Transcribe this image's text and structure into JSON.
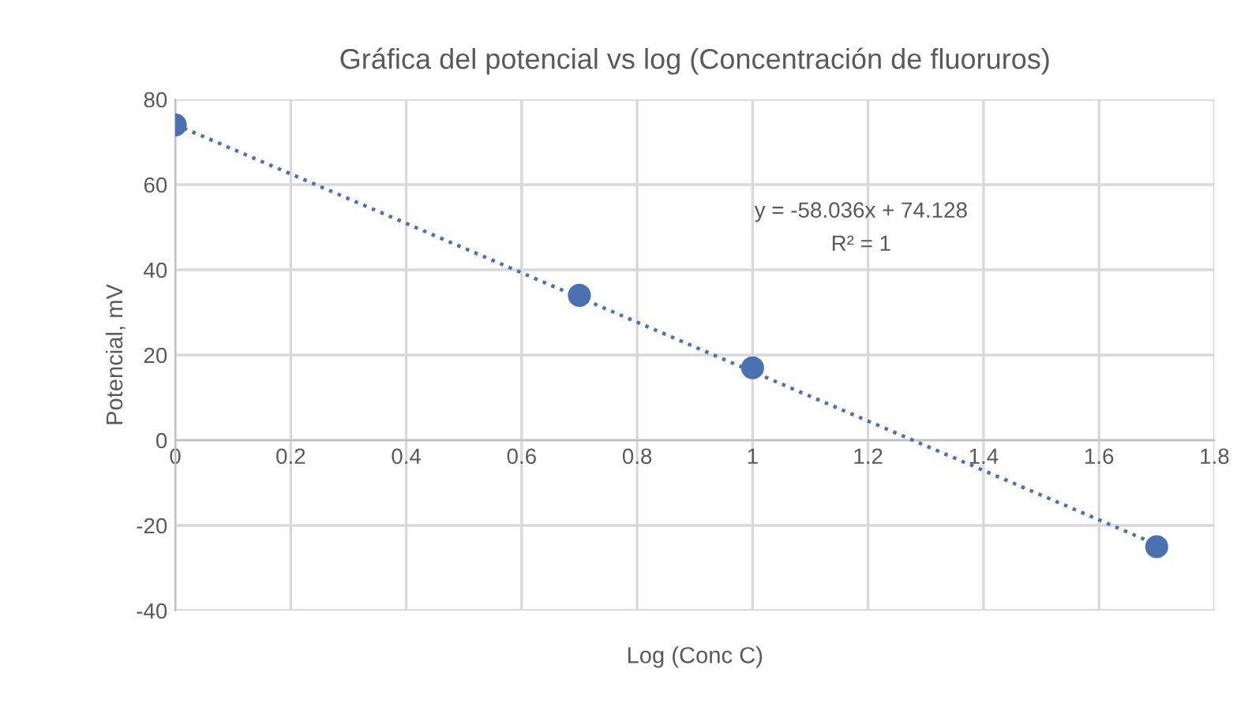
{
  "chart_data": {
    "type": "scatter",
    "title": "Gráfica del potencial vs log (Concentración de fluoruros)",
    "xlabel": "Log (Conc C)",
    "ylabel": "Potencial, mV",
    "series": [
      {
        "color": "#4a72b0",
        "x": [
          0,
          0.7,
          1,
          1.7
        ],
        "values": [
          74,
          34,
          17,
          -25
        ],
        "marker": "circle"
      },
      {
        "type": "line",
        "color": "#4a72b0",
        "x": [
          0,
          1.7
        ],
        "values": [
          74.1,
          -24.5
        ],
        "line_style": "dotted",
        "marker": "none"
      }
    ],
    "annotations": [
      "y = -58.036x + 74.128",
      "R² = 1"
    ],
    "xlim": [
      0,
      1.8
    ],
    "xticks": [
      0,
      0.2,
      0.4,
      0.6,
      0.8,
      1,
      1.2,
      1.4,
      1.6,
      1.8
    ],
    "ylim": [
      -40,
      80
    ],
    "yticks": [
      -40,
      -20,
      0,
      20,
      40,
      60,
      80
    ],
    "grid": true,
    "legend": false
  }
}
